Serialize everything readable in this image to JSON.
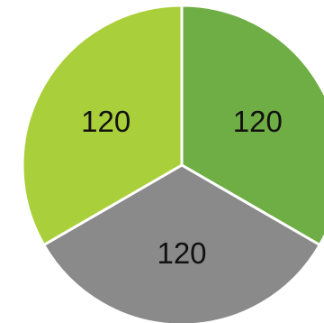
{
  "chart_data": {
    "type": "pie",
    "categories": [
      "",
      "",
      ""
    ],
    "values": [
      120,
      120,
      120
    ],
    "data_labels": [
      "120",
      "120",
      "120"
    ],
    "colors": [
      "#6fad45",
      "#8a8a8a",
      "#a9cf3a"
    ],
    "slice_border_color": "#ffffff",
    "start_angle_degrees": 0,
    "direction": "clockwise",
    "legend": "none"
  }
}
